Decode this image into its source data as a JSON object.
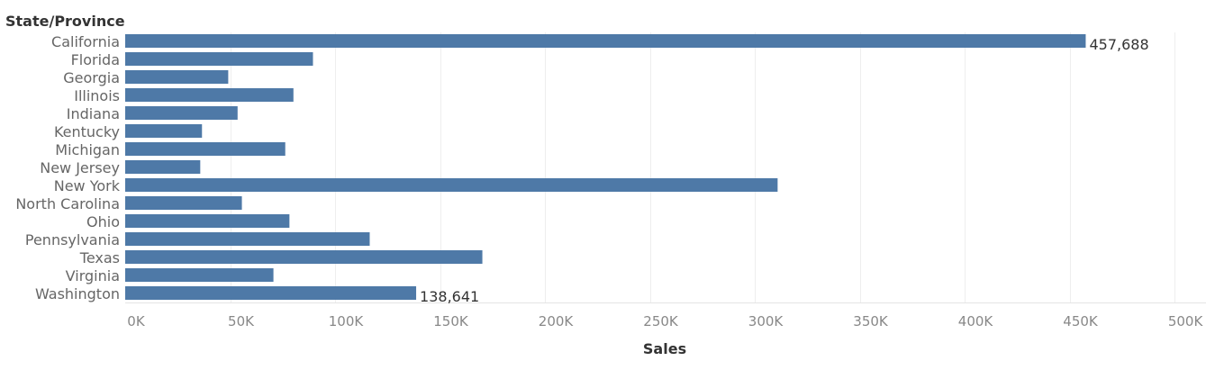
{
  "chart_data": {
    "type": "bar",
    "orientation": "horizontal",
    "row_header": "State/Province",
    "xlabel": "Sales",
    "categories": [
      "California",
      "Florida",
      "Georgia",
      "Illinois",
      "Indiana",
      "Kentucky",
      "Michigan",
      "New Jersey",
      "New York",
      "North Carolina",
      "Ohio",
      "Pennsylvania",
      "Texas",
      "Virginia",
      "Washington"
    ],
    "values": [
      457688,
      89474,
      49096,
      80166,
      53556,
      36592,
      76270,
      35764,
      310876,
      55603,
      78258,
      116512,
      170188,
      70637,
      138641
    ],
    "data_labels": [
      {
        "category": "California",
        "text": "457,688"
      },
      {
        "category": "Washington",
        "text": "138,641"
      }
    ],
    "xlim": [
      0,
      515000
    ],
    "xticks": [
      0,
      50000,
      100000,
      150000,
      200000,
      250000,
      300000,
      350000,
      400000,
      450000,
      500000
    ],
    "xtick_labels": [
      "0K",
      "50K",
      "100K",
      "150K",
      "200K",
      "250K",
      "300K",
      "350K",
      "400K",
      "450K",
      "500K"
    ],
    "grid": "vertical",
    "legend": "none",
    "colors": {
      "bar": "#4e79a7"
    }
  }
}
